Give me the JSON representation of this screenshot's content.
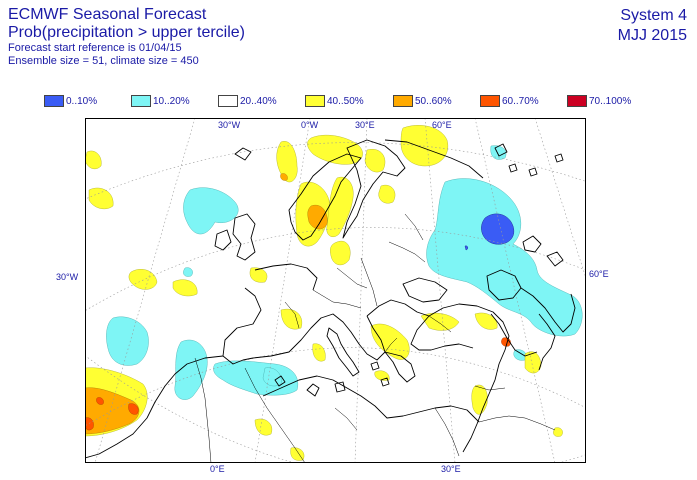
{
  "header": {
    "title": "ECMWF Seasonal Forecast",
    "subtitle": "Prob(precipitation > upper tercile)",
    "start_ref": "Forecast start reference is 01/04/15",
    "ensemble": "Ensemble size = 51, climate size = 450",
    "system": "System 4",
    "period": "MJJ 2015"
  },
  "legend": [
    {
      "label": "0..10%",
      "color": "#3a5cf5"
    },
    {
      "label": "10..20%",
      "color": "#7ef5f5"
    },
    {
      "label": "20..40%",
      "color": "#ffffff"
    },
    {
      "label": "40..50%",
      "color": "#ffff33"
    },
    {
      "label": "50..60%",
      "color": "#ffaa00"
    },
    {
      "label": "60..70%",
      "color": "#ff5500"
    },
    {
      "label": "70..100%",
      "color": "#cc0022"
    }
  ],
  "map": {
    "lon_labels_top": [
      "30°W",
      "0°W",
      "30°E",
      "60°E"
    ],
    "lon_labels_bottom": [
      "0°E",
      "30°E"
    ],
    "lat_label_left": "30°W",
    "lat_label_right": "60°E"
  }
}
